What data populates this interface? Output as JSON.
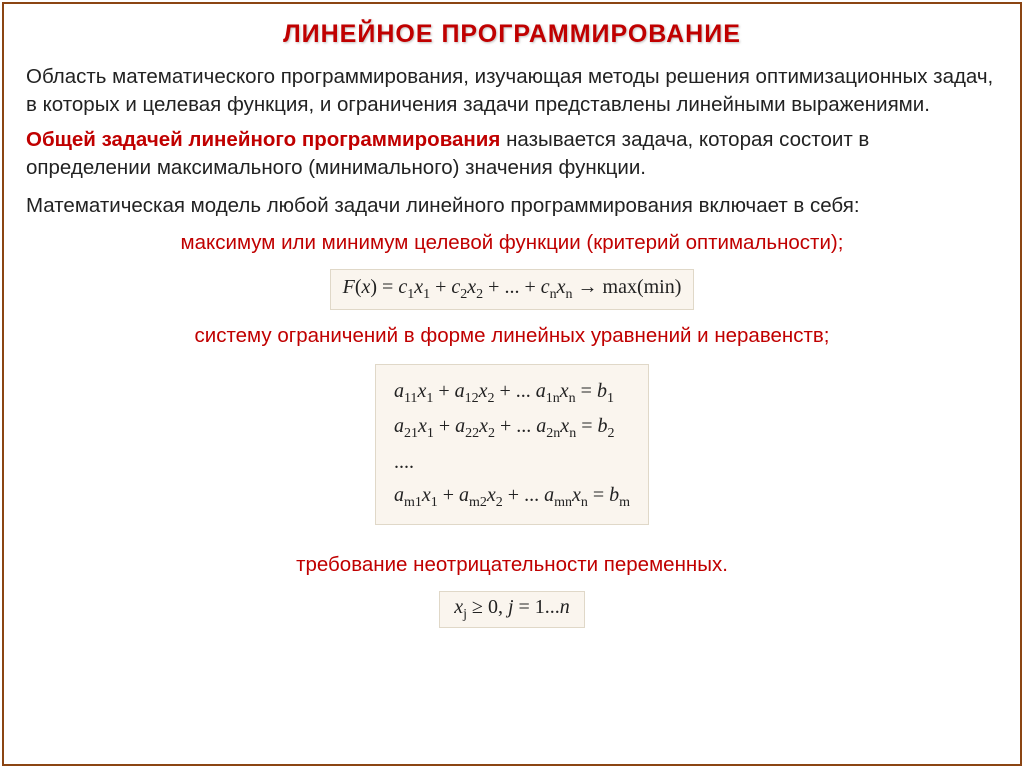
{
  "title": "ЛИНЕЙНОЕ ПРОГРАММИРОВАНИЕ",
  "p1": "Область математического программирования, изучающая методы решения оптимизационных задач, в которых и целевая функция, и ограничения задачи представлены линейными выражениями.",
  "p2_bold": "Общей задачей линейного программирования",
  "p2_rest": " называется задача, которая состоит в определении максимального (минимального) значения функции.",
  "p3": "Математическая модель любой задачи линейного программирования включает в себя:",
  "bullet1": "максимум или минимум целевой функции (критерий оптимальности);",
  "bullet2": "систему ограничений в форме линейных уравнений и неравенств;",
  "bullet3": "требование неотрицательности переменных.",
  "colors": {
    "title": "#c00000",
    "red_text": "#c00000",
    "body_text": "#222222",
    "border": "#8b4513",
    "formula_bg": "#faf5ee",
    "formula_border": "#e0d8c8"
  },
  "typography": {
    "title_fontsize": 25,
    "body_fontsize": 20.5,
    "formula_fontsize": 20,
    "body_font": "Arial",
    "formula_font": "Times New Roman"
  },
  "formulas": {
    "objective": "F(x) = c₁x₁ + c₂x₂ + ... + cₙxₙ → max(min)",
    "constraints": [
      "a₁₁x₁ + a₁₂x₂ + ... a₁ₙxₙ = b₁",
      "a₂₁x₁ + a₂₂x₂ + ... a₂ₙxₙ = b₂",
      "....",
      "aₘ₁x₁ + aₘ₂x₂ + ... aₘₙxₙ = bₘ"
    ],
    "nonneg": "xⱼ ≥ 0, j = 1...n"
  },
  "layout": {
    "slide_width": 1024,
    "slide_height": 768,
    "border_width": 2
  }
}
